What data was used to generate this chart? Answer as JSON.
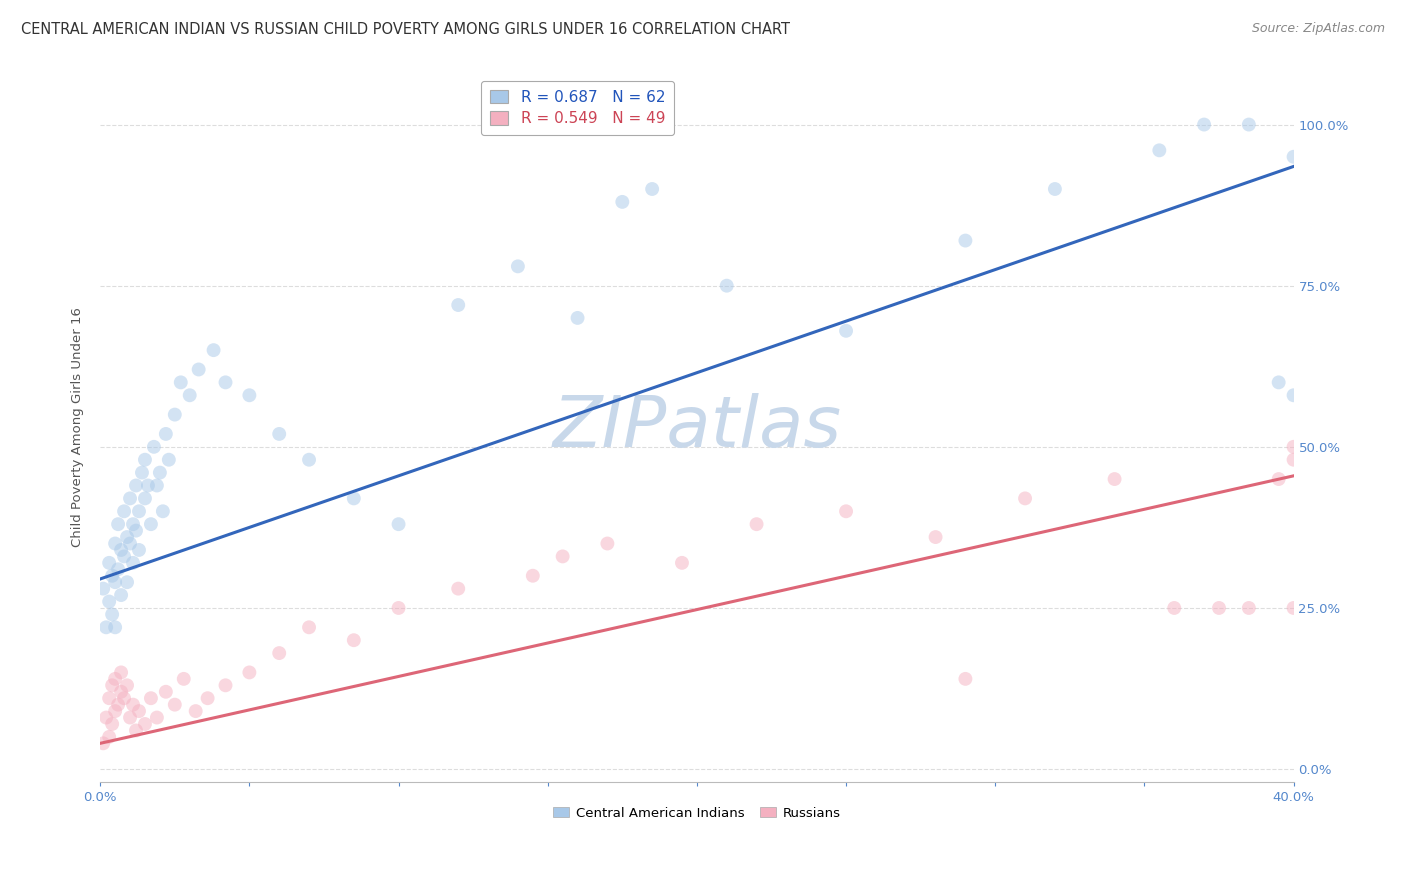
{
  "title": "CENTRAL AMERICAN INDIAN VS RUSSIAN CHILD POVERTY AMONG GIRLS UNDER 16 CORRELATION CHART",
  "source": "Source: ZipAtlas.com",
  "ylabel": "Child Poverty Among Girls Under 16",
  "watermark": "ZIPatlas",
  "legend_entries": [
    {
      "label": "R = 0.687   N = 62",
      "color": "#a8c8e8"
    },
    {
      "label": "R = 0.549   N = 49",
      "color": "#f4b8c8"
    }
  ],
  "scatter_labels": [
    "Central American Indians",
    "Russians"
  ],
  "blue_color": "#a8c8e8",
  "pink_color": "#f4b0c0",
  "blue_line_color": "#3366bb",
  "pink_line_color": "#dd6677",
  "right_yticks": [
    0.0,
    0.25,
    0.5,
    0.75,
    1.0
  ],
  "xlim": [
    0.0,
    0.4
  ],
  "ylim": [
    -0.02,
    1.08
  ],
  "blue_scatter_x": [
    0.001,
    0.002,
    0.003,
    0.003,
    0.004,
    0.004,
    0.005,
    0.005,
    0.005,
    0.006,
    0.006,
    0.007,
    0.007,
    0.008,
    0.008,
    0.009,
    0.009,
    0.01,
    0.01,
    0.011,
    0.011,
    0.012,
    0.012,
    0.013,
    0.013,
    0.014,
    0.015,
    0.015,
    0.016,
    0.017,
    0.018,
    0.019,
    0.02,
    0.021,
    0.022,
    0.023,
    0.025,
    0.027,
    0.03,
    0.033,
    0.038,
    0.042,
    0.05,
    0.06,
    0.07,
    0.085,
    0.1,
    0.12,
    0.14,
    0.16,
    0.185,
    0.21,
    0.25,
    0.29,
    0.32,
    0.355,
    0.37,
    0.385,
    0.395,
    0.4,
    0.4,
    0.175
  ],
  "blue_scatter_y": [
    0.28,
    0.22,
    0.32,
    0.26,
    0.3,
    0.24,
    0.35,
    0.29,
    0.22,
    0.38,
    0.31,
    0.34,
    0.27,
    0.4,
    0.33,
    0.36,
    0.29,
    0.42,
    0.35,
    0.38,
    0.32,
    0.44,
    0.37,
    0.4,
    0.34,
    0.46,
    0.48,
    0.42,
    0.44,
    0.38,
    0.5,
    0.44,
    0.46,
    0.4,
    0.52,
    0.48,
    0.55,
    0.6,
    0.58,
    0.62,
    0.65,
    0.6,
    0.58,
    0.52,
    0.48,
    0.42,
    0.38,
    0.72,
    0.78,
    0.7,
    0.9,
    0.75,
    0.68,
    0.82,
    0.9,
    0.96,
    1.0,
    1.0,
    0.6,
    0.58,
    0.95,
    0.88
  ],
  "pink_scatter_x": [
    0.001,
    0.002,
    0.003,
    0.003,
    0.004,
    0.004,
    0.005,
    0.005,
    0.006,
    0.007,
    0.007,
    0.008,
    0.009,
    0.01,
    0.011,
    0.012,
    0.013,
    0.015,
    0.017,
    0.019,
    0.022,
    0.025,
    0.028,
    0.032,
    0.036,
    0.042,
    0.05,
    0.06,
    0.07,
    0.085,
    0.1,
    0.12,
    0.145,
    0.17,
    0.195,
    0.22,
    0.25,
    0.28,
    0.31,
    0.34,
    0.36,
    0.375,
    0.385,
    0.395,
    0.4,
    0.4,
    0.4,
    0.29,
    0.155
  ],
  "pink_scatter_y": [
    0.04,
    0.08,
    0.05,
    0.11,
    0.07,
    0.13,
    0.09,
    0.14,
    0.1,
    0.12,
    0.15,
    0.11,
    0.13,
    0.08,
    0.1,
    0.06,
    0.09,
    0.07,
    0.11,
    0.08,
    0.12,
    0.1,
    0.14,
    0.09,
    0.11,
    0.13,
    0.15,
    0.18,
    0.22,
    0.2,
    0.25,
    0.28,
    0.3,
    0.35,
    0.32,
    0.38,
    0.4,
    0.36,
    0.42,
    0.45,
    0.25,
    0.25,
    0.25,
    0.45,
    0.48,
    0.25,
    0.5,
    0.14,
    0.33
  ],
  "blue_trend_x": [
    0.0,
    0.4
  ],
  "blue_trend_y": [
    0.295,
    0.935
  ],
  "pink_trend_x": [
    0.0,
    0.4
  ],
  "pink_trend_y": [
    0.04,
    0.455
  ],
  "grid_color": "#dddddd",
  "bg_color": "#ffffff",
  "title_fontsize": 10.5,
  "source_fontsize": 9,
  "axis_label_fontsize": 9.5,
  "watermark_fontsize": 52,
  "watermark_color": "#c8d8ea",
  "scatter_size": 100,
  "scatter_alpha": 0.5,
  "line_width": 2.2,
  "legend_fontsize": 11,
  "legend_label_color_blue": "#2255bb",
  "legend_label_color_pink": "#cc4455"
}
